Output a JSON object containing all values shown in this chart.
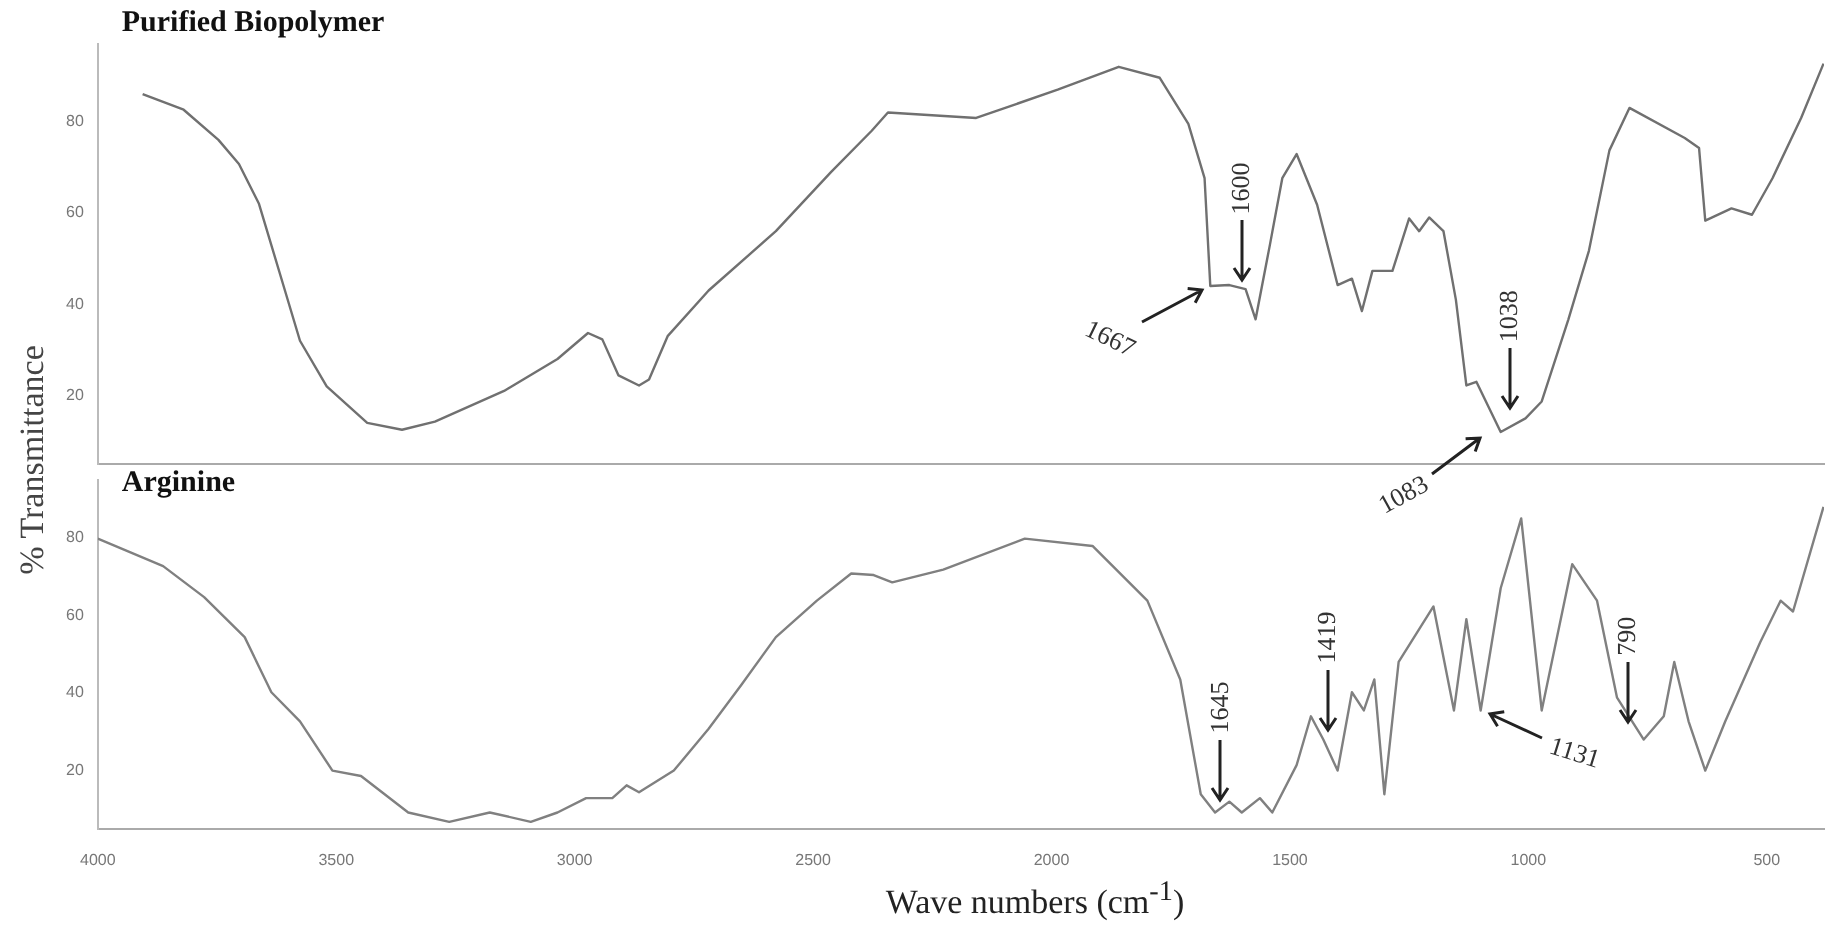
{
  "chart_data": [
    {
      "type": "line",
      "title": "Purified Biopolymer",
      "ylabel": "% Transmittance",
      "color": "#707070",
      "xlim": [
        4000,
        380
      ],
      "ylim": [
        5,
        97
      ],
      "yticks": [
        20,
        40,
        60,
        80
      ],
      "tick_labels": "y",
      "x": [
        3906,
        3820,
        3747,
        3704,
        3662,
        3619,
        3576,
        3520,
        3435,
        3362,
        3293,
        3148,
        3036,
        2972,
        2942,
        2908,
        2865,
        2844,
        2805,
        2719,
        2578,
        2462,
        2377,
        2343,
        2158,
        1987,
        1859,
        1773,
        1713,
        1679,
        1667,
        1627,
        1593,
        1572,
        1542,
        1516,
        1486,
        1443,
        1400,
        1370,
        1349,
        1327,
        1285,
        1250,
        1229,
        1208,
        1178,
        1152,
        1130,
        1109,
        1058,
        1006,
        972,
        916,
        873,
        830,
        788,
        672,
        642,
        629,
        574,
        531,
        488,
        428,
        381
      ],
      "values": [
        86,
        82.6,
        76,
        70.7,
        62,
        47,
        32,
        22,
        14,
        12.5,
        14.3,
        21,
        28,
        33.7,
        32.3,
        24.4,
        22.2,
        23.5,
        33,
        43,
        56,
        69,
        78,
        82,
        80.8,
        87,
        92,
        89.6,
        79.5,
        67.6,
        44,
        44.2,
        43.3,
        36.7,
        53,
        67.6,
        72.9,
        61.8,
        44.2,
        45.6,
        38.5,
        47.3,
        47.3,
        58.8,
        56,
        59,
        56,
        41,
        22.2,
        23,
        12,
        15,
        18.7,
        36.7,
        51.7,
        73.7,
        83,
        76.4,
        74.2,
        58.3,
        61,
        59.6,
        67.6,
        80.8,
        92.7
      ],
      "annotations": [
        {
          "text": "1667",
          "x": 1667,
          "y": 44
        },
        {
          "text": "1600",
          "x": 1600,
          "y": 43
        },
        {
          "text": "1038",
          "x": 1038,
          "y": 15
        },
        {
          "text": "1083",
          "x": 1083,
          "y": 12
        }
      ]
    },
    {
      "type": "line",
      "title": "Arginine",
      "xlabel": "Wave numbers (cm$^{-1}$)",
      "color": "#808080",
      "xlim": [
        4000,
        380
      ],
      "ylim": [
        5,
        95
      ],
      "xticks": [
        4000,
        3500,
        3000,
        2500,
        2000,
        1500,
        1000,
        500
      ],
      "yticks": [
        20,
        40,
        60,
        80
      ],
      "x": [
        4000,
        3863,
        3777,
        3692,
        3636,
        3576,
        3508,
        3448,
        3349,
        3263,
        3178,
        3092,
        3036,
        2976,
        2921,
        2891,
        2865,
        2792,
        2719,
        2651,
        2578,
        2492,
        2420,
        2373,
        2334,
        2227,
        2056,
        1914,
        1799,
        1730,
        1687,
        1657,
        1627,
        1601,
        1563,
        1537,
        1486,
        1456,
        1430,
        1400,
        1370,
        1345,
        1323,
        1302,
        1272,
        1199,
        1156,
        1130,
        1100,
        1058,
        1015,
        972,
        908,
        856,
        814,
        758,
        716,
        694,
        664,
        629,
        587,
        514,
        471,
        445,
        381
      ],
      "values": [
        79.8,
        72.7,
        64.7,
        54.4,
        40.2,
        32.7,
        20,
        18.6,
        9.2,
        6.8,
        9.2,
        6.8,
        9.2,
        12.9,
        12.9,
        16.2,
        14.4,
        20,
        30.8,
        42,
        54.4,
        63.8,
        70.8,
        70.4,
        68.5,
        71.8,
        79.8,
        77.9,
        63.8,
        43.5,
        13.9,
        9.2,
        12,
        9.2,
        12.9,
        9.2,
        21.4,
        34,
        28,
        20,
        40.2,
        35.5,
        43.5,
        13.9,
        48,
        62.3,
        35.5,
        59,
        35.5,
        67,
        85,
        35.5,
        73.2,
        63.8,
        38.8,
        28,
        34,
        48,
        32.7,
        20,
        32.7,
        53,
        63.8,
        61,
        88
      ],
      "annotations": [
        {
          "text": "1645",
          "x": 1645,
          "y": 10
        },
        {
          "text": "1419",
          "x": 1419,
          "y": 28
        },
        {
          "text": "1131",
          "x": 1100,
          "y": 35.5
        },
        {
          "text": "790",
          "x": 790,
          "y": 30
        }
      ]
    }
  ]
}
